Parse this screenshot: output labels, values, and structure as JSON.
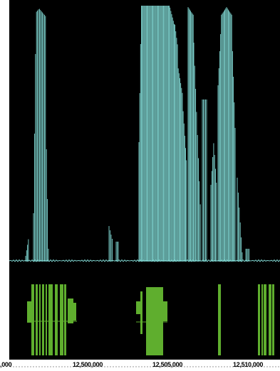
{
  "colors": {
    "background": "#000000",
    "frame": "#ffffff",
    "coverage_signal": "#7fd6d1",
    "gene_model": "#5fae2e",
    "ruler": "#ffffff"
  },
  "tracks": {
    "coverage": {
      "name": "coverage-track"
    },
    "genes": {
      "name": "gene-model-track"
    }
  },
  "axis": {
    "tick_labels": [
      ",000",
      "12,500,000",
      "12,505,000",
      "12,510,000"
    ]
  }
}
